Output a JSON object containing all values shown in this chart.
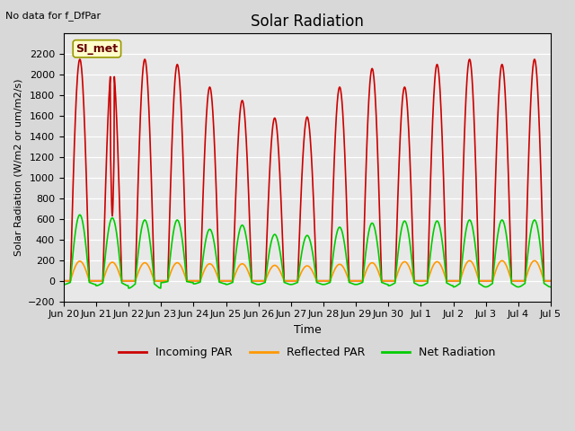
{
  "title": "Solar Radiation",
  "subtitle": "No data for f_DfPar",
  "xlabel": "Time",
  "ylabel": "Solar Radiation (W/m2 or um/m2/s)",
  "ylim": [
    -200,
    2400
  ],
  "yticks": [
    -200,
    0,
    200,
    400,
    600,
    800,
    1000,
    1200,
    1400,
    1600,
    1800,
    2000,
    2200
  ],
  "legend_label": "SI_met",
  "line_incoming_color": "#cc0000",
  "line_reflected_color": "#ff9900",
  "line_net_color": "#00cc00",
  "background_color": "#e8e8e8",
  "xtick_labels": [
    "Jun 20",
    "Jun 21",
    "Jun 22",
    "Jun 23",
    "Jun 24",
    "Jun 25",
    "Jun 26",
    "Jun 27",
    "Jun 28",
    "Jun 29",
    "Jun 30",
    "Jul 1",
    "Jul 2",
    "Jul 3",
    "Jul 4",
    "Jul 5"
  ],
  "num_days": 15,
  "incoming_peaks": [
    2150,
    2100,
    2150,
    2100,
    1880,
    1750,
    1580,
    1590,
    1880,
    2060,
    1880,
    2100,
    2150,
    2100,
    2150
  ],
  "net_peaks": [
    640,
    610,
    590,
    590,
    500,
    540,
    450,
    440,
    520,
    560,
    580,
    580,
    590,
    590,
    590
  ],
  "reflected_peaks": [
    190,
    180,
    175,
    175,
    165,
    165,
    150,
    145,
    160,
    175,
    185,
    185,
    195,
    195,
    195
  ],
  "net_negative": [
    -60,
    -80,
    -120,
    -30,
    -50,
    -60,
    -60,
    -60,
    -60,
    -60,
    -80,
    -80,
    -100,
    -100,
    -100
  ],
  "line_width": 1.2
}
